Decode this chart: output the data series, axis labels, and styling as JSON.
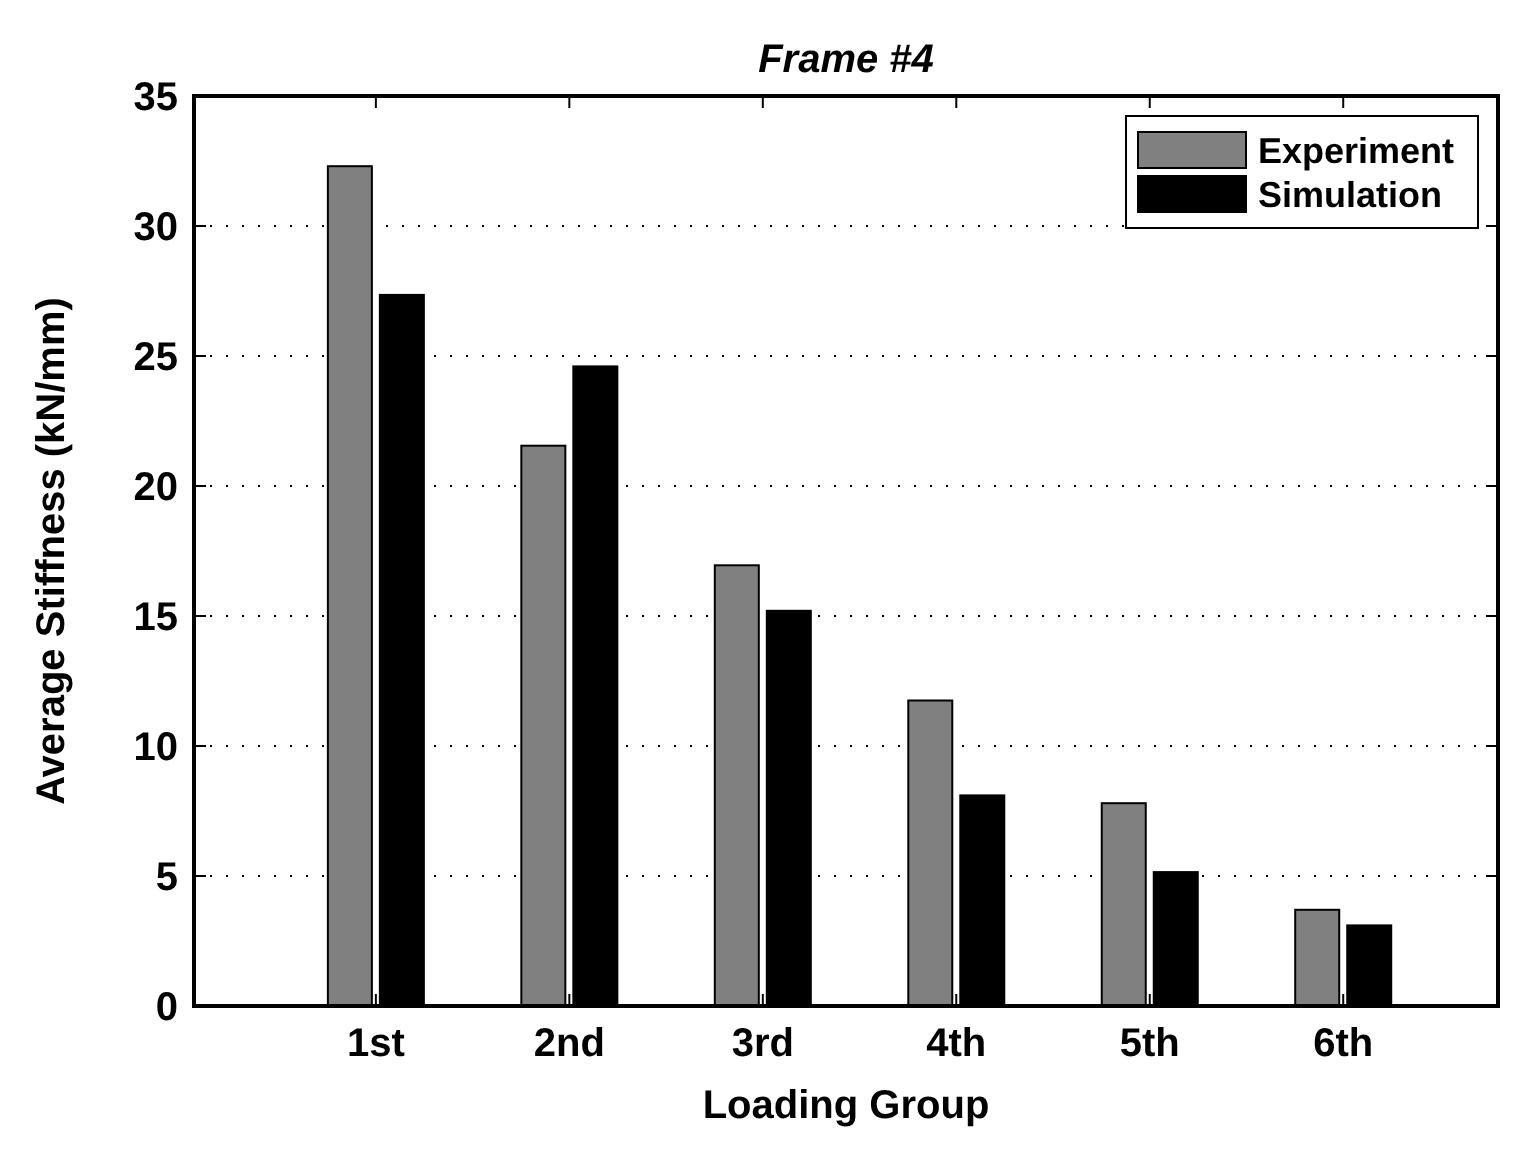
{
  "chart_data": {
    "type": "bar",
    "title": "Frame #4",
    "xlabel": "Loading Group",
    "ylabel": "Average Stiffness (kN/mm)",
    "categories": [
      "1st",
      "2nd",
      "3rd",
      "4th",
      "5th",
      "6th"
    ],
    "series": [
      {
        "name": "Experiment",
        "color": "#808080",
        "values": [
          32.3,
          21.55,
          16.95,
          11.75,
          7.8,
          3.7
        ]
      },
      {
        "name": "Simulation",
        "color": "#000000",
        "values": [
          27.35,
          24.6,
          15.2,
          8.1,
          5.15,
          3.1
        ]
      }
    ],
    "ylim": [
      0,
      35
    ],
    "yticks": [
      0,
      5,
      10,
      15,
      20,
      25,
      30,
      35
    ],
    "grid": "y",
    "legend": "top right"
  }
}
